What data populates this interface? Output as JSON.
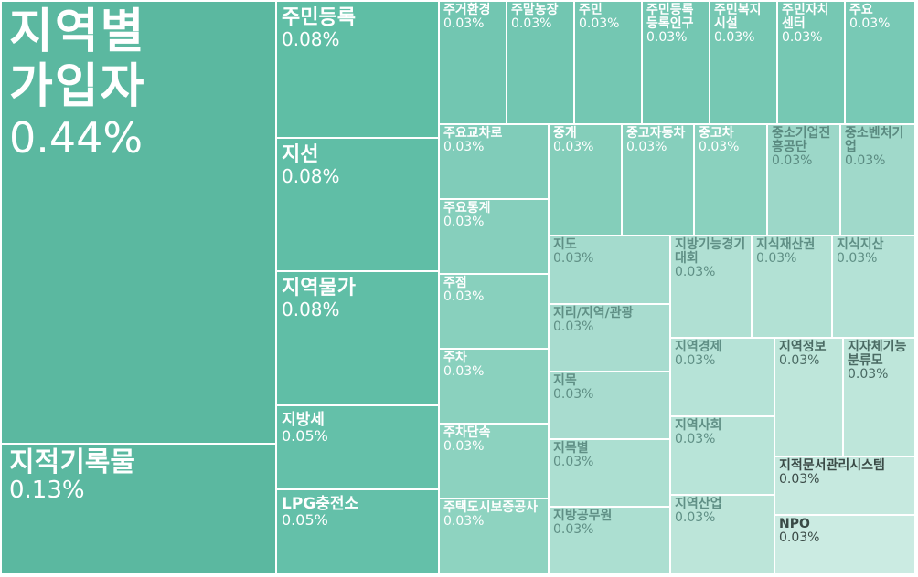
{
  "chart_data": {
    "type": "treemap",
    "title": "",
    "items": [
      {
        "label": "지역별가입자",
        "value": 0.44,
        "value_text": "0.44%"
      },
      {
        "label": "지적기록물",
        "value": 0.13,
        "value_text": "0.13%"
      },
      {
        "label": "주민등록",
        "value": 0.08,
        "value_text": "0.08%"
      },
      {
        "label": "지선",
        "value": 0.08,
        "value_text": "0.08%"
      },
      {
        "label": "지역물가",
        "value": 0.08,
        "value_text": "0.08%"
      },
      {
        "label": "지방세",
        "value": 0.05,
        "value_text": "0.05%"
      },
      {
        "label": "LPG충전소",
        "value": 0.05,
        "value_text": "0.05%"
      },
      {
        "label": "주거환경",
        "value": 0.03,
        "value_text": "0.03%"
      },
      {
        "label": "주말농장",
        "value": 0.03,
        "value_text": "0.03%"
      },
      {
        "label": "주민",
        "value": 0.03,
        "value_text": "0.03%"
      },
      {
        "label": "주민등록등록인구",
        "value": 0.03,
        "value_text": "0.03%"
      },
      {
        "label": "주민복지시설",
        "value": 0.03,
        "value_text": "0.03%"
      },
      {
        "label": "주민자치센터",
        "value": 0.03,
        "value_text": "0.03%"
      },
      {
        "label": "주요",
        "value": 0.03,
        "value_text": "0.03%"
      },
      {
        "label": "주요교차로",
        "value": 0.03,
        "value_text": "0.03%"
      },
      {
        "label": "중개",
        "value": 0.03,
        "value_text": "0.03%"
      },
      {
        "label": "중고자동차",
        "value": 0.03,
        "value_text": "0.03%"
      },
      {
        "label": "중고차",
        "value": 0.03,
        "value_text": "0.03%"
      },
      {
        "label": "중소기업진흥공단",
        "value": 0.03,
        "value_text": "0.03%"
      },
      {
        "label": "중소벤처기업",
        "value": 0.03,
        "value_text": "0.03%"
      },
      {
        "label": "주요통계",
        "value": 0.03,
        "value_text": "0.03%"
      },
      {
        "label": "주점",
        "value": 0.03,
        "value_text": "0.03%"
      },
      {
        "label": "주차",
        "value": 0.03,
        "value_text": "0.03%"
      },
      {
        "label": "주차단속",
        "value": 0.03,
        "value_text": "0.03%"
      },
      {
        "label": "주택도시보증공사",
        "value": 0.03,
        "value_text": "0.03%"
      },
      {
        "label": "지도",
        "value": 0.03,
        "value_text": "0.03%"
      },
      {
        "label": "지리/지역/관광",
        "value": 0.03,
        "value_text": "0.03%"
      },
      {
        "label": "지목",
        "value": 0.03,
        "value_text": "0.03%"
      },
      {
        "label": "지목별",
        "value": 0.03,
        "value_text": "0.03%"
      },
      {
        "label": "지방공무원",
        "value": 0.03,
        "value_text": "0.03%"
      },
      {
        "label": "지방기능경기대회",
        "value": 0.03,
        "value_text": "0.03%"
      },
      {
        "label": "지식재산권",
        "value": 0.03,
        "value_text": "0.03%"
      },
      {
        "label": "지식지산",
        "value": 0.03,
        "value_text": "0.03%"
      },
      {
        "label": "지역경제",
        "value": 0.03,
        "value_text": "0.03%"
      },
      {
        "label": "지역정보",
        "value": 0.03,
        "value_text": "0.03%"
      },
      {
        "label": "지자체기능분류모",
        "value": 0.03,
        "value_text": "0.03%"
      },
      {
        "label": "지역사회",
        "value": 0.03,
        "value_text": "0.03%"
      },
      {
        "label": "지역산업",
        "value": 0.03,
        "value_text": "0.03%"
      },
      {
        "label": "지적문서관리시스템",
        "value": 0.03,
        "value_text": "0.03%"
      },
      {
        "label": "NPO",
        "value": 0.03,
        "value_text": "0.03%"
      }
    ]
  }
}
